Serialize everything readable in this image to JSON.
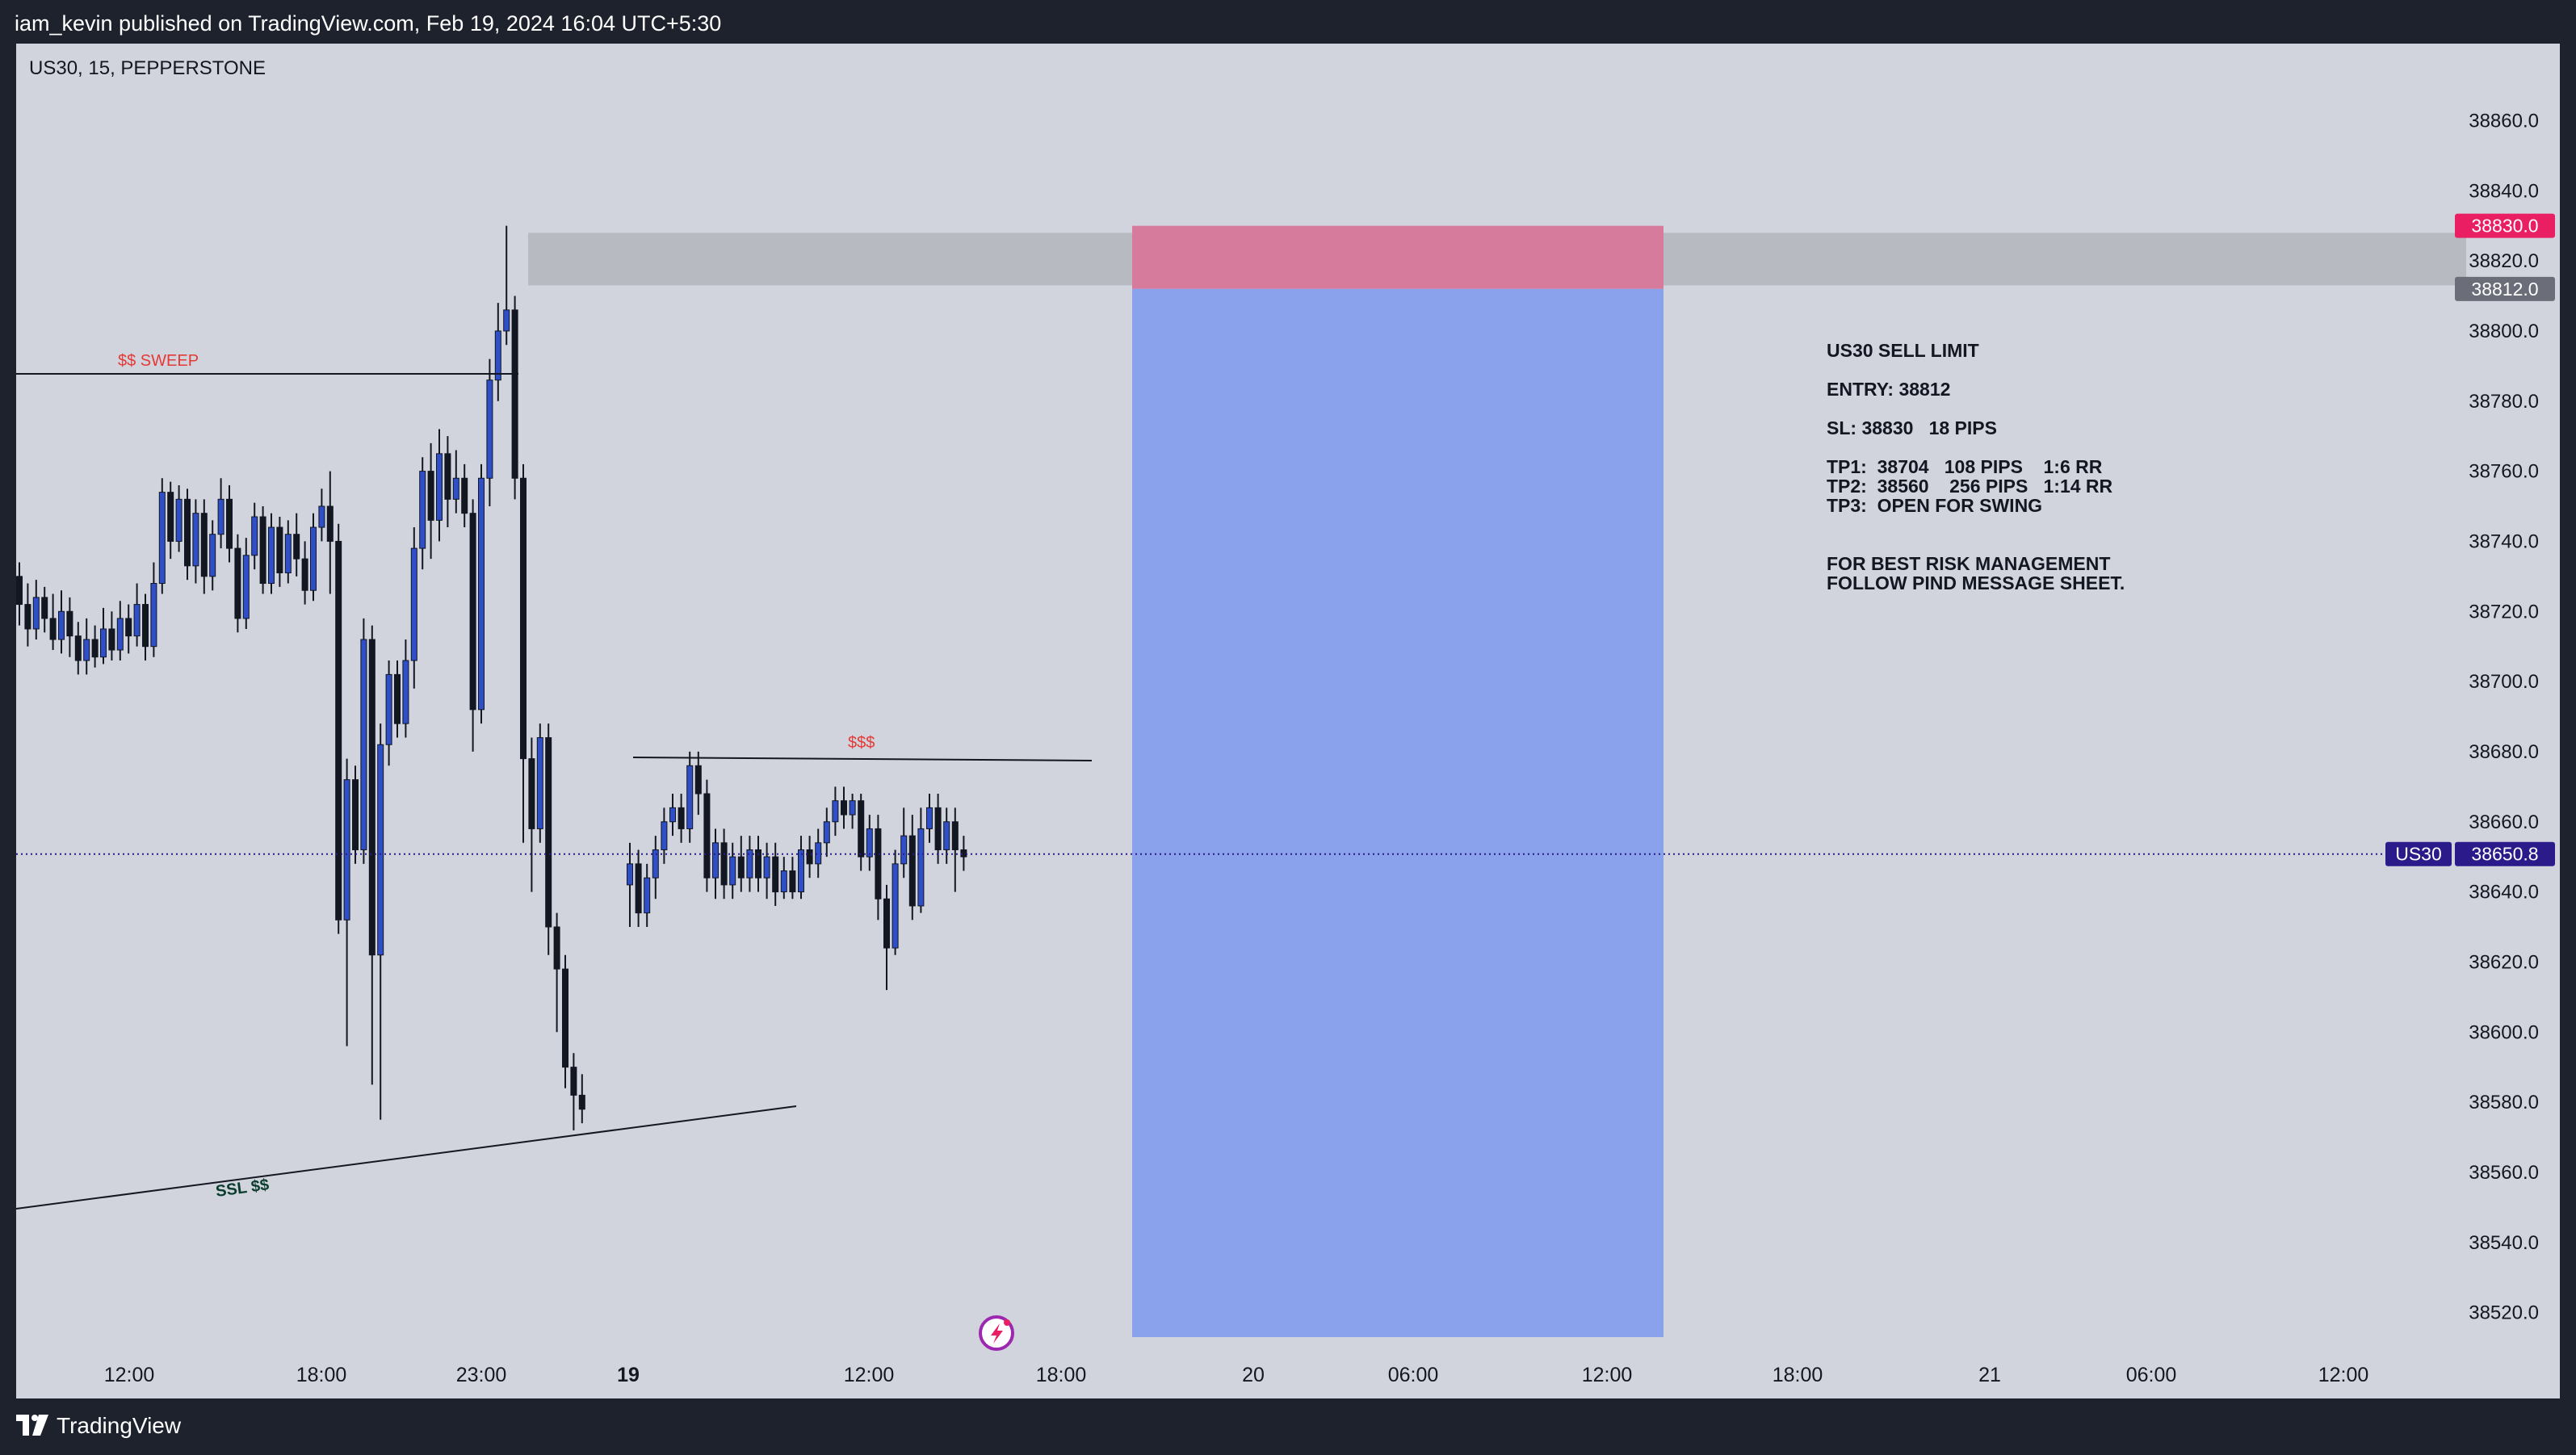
{
  "header": {
    "published_text": "iam_kevin published on TradingView.com, Feb 19, 2024 16:04 UTC+5:30"
  },
  "footer": {
    "brand": "TradingView"
  },
  "symbol_info": "US30, 15, PEPPERSTONE",
  "colors": {
    "background": "#d1d4dc",
    "frame": "#1e222d",
    "candle_up": "#2e4fc7",
    "candle_down": "#131722",
    "stop_zone": "#d67b9c",
    "target_zone": "#8aa2ec",
    "supply_zone": "#b8bac2",
    "sell_marker": "#e91e63",
    "last_price": "#2b1b8a",
    "annotation_red": "#e53935",
    "annotation_green": "#0b3d2e"
  },
  "chart_data": {
    "type": "candlestick",
    "y_range": [
      38510,
      38870
    ],
    "y_ticks": [
      "38520.0",
      "38540.0",
      "38560.0",
      "38580.0",
      "38600.0",
      "38620.0",
      "38640.0",
      "38660.0",
      "38680.0",
      "38700.0",
      "38720.0",
      "38740.0",
      "38760.0",
      "38780.0",
      "38800.0",
      "38820.0",
      "38840.0",
      "38860.0"
    ],
    "x_ticks": [
      "12:00",
      "18:00",
      "23:00",
      "19",
      "12:00",
      "18:00",
      "20",
      "06:00",
      "12:00",
      "18:00",
      "21",
      "06:00",
      "12:00"
    ],
    "candles": [
      [
        38730,
        38722,
        38734,
        38716
      ],
      [
        38722,
        38715,
        38728,
        38710
      ],
      [
        38715,
        38724,
        38729,
        38712
      ],
      [
        38724,
        38718,
        38727,
        38714
      ],
      [
        38718,
        38712,
        38725,
        38709
      ],
      [
        38712,
        38720,
        38726,
        38708
      ],
      [
        38720,
        38713,
        38724,
        38707
      ],
      [
        38713,
        38706,
        38717,
        38702
      ],
      [
        38706,
        38712,
        38718,
        38702
      ],
      [
        38712,
        38707,
        38716,
        38704
      ],
      [
        38707,
        38715,
        38721,
        38705
      ],
      [
        38715,
        38709,
        38720,
        38706
      ],
      [
        38709,
        38718,
        38723,
        38706
      ],
      [
        38718,
        38713,
        38722,
        38708
      ],
      [
        38713,
        38722,
        38728,
        38710
      ],
      [
        38722,
        38710,
        38725,
        38706
      ],
      [
        38710,
        38728,
        38734,
        38707
      ],
      [
        38728,
        38754,
        38758,
        38725
      ],
      [
        38754,
        38740,
        38757,
        38735
      ],
      [
        38740,
        38752,
        38756,
        38737
      ],
      [
        38752,
        38733,
        38755,
        38729
      ],
      [
        38733,
        38748,
        38752,
        38728
      ],
      [
        38748,
        38730,
        38752,
        38725
      ],
      [
        38730,
        38742,
        38746,
        38726
      ],
      [
        38742,
        38752,
        38758,
        38738
      ],
      [
        38752,
        38738,
        38756,
        38734
      ],
      [
        38738,
        38718,
        38742,
        38714
      ],
      [
        38718,
        38736,
        38741,
        38715
      ],
      [
        38736,
        38747,
        38751,
        38732
      ],
      [
        38747,
        38728,
        38750,
        38725
      ],
      [
        38728,
        38744,
        38748,
        38725
      ],
      [
        38744,
        38731,
        38747,
        38727
      ],
      [
        38731,
        38742,
        38746,
        38728
      ],
      [
        38742,
        38735,
        38748,
        38730
      ],
      [
        38735,
        38726,
        38740,
        38722
      ],
      [
        38726,
        38744,
        38748,
        38723
      ],
      [
        38744,
        38750,
        38755,
        38740
      ],
      [
        38750,
        38740,
        38760,
        38725
      ],
      [
        38740,
        38632,
        38745,
        38628
      ],
      [
        38632,
        38672,
        38678,
        38596
      ],
      [
        38672,
        38652,
        38676,
        38648
      ],
      [
        38652,
        38712,
        38718,
        38648
      ],
      [
        38712,
        38622,
        38716,
        38585
      ],
      [
        38622,
        38682,
        38688,
        38575
      ],
      [
        38682,
        38702,
        38706,
        38676
      ],
      [
        38702,
        38688,
        38706,
        38684
      ],
      [
        38688,
        38706,
        38712,
        38684
      ],
      [
        38706,
        38738,
        38744,
        38698
      ],
      [
        38738,
        38760,
        38764,
        38732
      ],
      [
        38760,
        38746,
        38768,
        38735
      ],
      [
        38746,
        38765,
        38772,
        38740
      ],
      [
        38765,
        38752,
        38770,
        38744
      ],
      [
        38752,
        38758,
        38766,
        38748
      ],
      [
        38758,
        38748,
        38762,
        38744
      ],
      [
        38748,
        38692,
        38752,
        38680
      ],
      [
        38692,
        38758,
        38762,
        38688
      ],
      [
        38758,
        38786,
        38792,
        38750
      ],
      [
        38786,
        38800,
        38808,
        38780
      ],
      [
        38800,
        38806,
        38830,
        38796
      ],
      [
        38806,
        38758,
        38810,
        38752
      ],
      [
        38758,
        38678,
        38762,
        38654
      ],
      [
        38678,
        38658,
        38684,
        38640
      ],
      [
        38658,
        38684,
        38688,
        38654
      ],
      [
        38684,
        38630,
        38688,
        38622
      ],
      [
        38630,
        38618,
        38634,
        38600
      ],
      [
        38618,
        38590,
        38622,
        38584
      ],
      [
        38590,
        38582,
        38594,
        38572
      ],
      [
        38582,
        38578,
        38588,
        38574
      ],
      [
        38642,
        38648,
        38654,
        38630
      ],
      [
        38648,
        38634,
        38652,
        38630
      ],
      [
        38634,
        38644,
        38648,
        38630
      ],
      [
        38644,
        38652,
        38656,
        38638
      ],
      [
        38652,
        38660,
        38664,
        38648
      ],
      [
        38660,
        38664,
        38668,
        38656
      ],
      [
        38664,
        38658,
        38668,
        38654
      ],
      [
        38658,
        38676,
        38680,
        38654
      ],
      [
        38676,
        38668,
        38680,
        38662
      ],
      [
        38668,
        38644,
        38672,
        38640
      ],
      [
        38644,
        38654,
        38658,
        38638
      ],
      [
        38654,
        38642,
        38658,
        38638
      ],
      [
        38642,
        38650,
        38654,
        38638
      ],
      [
        38650,
        38644,
        38656,
        38640
      ],
      [
        38644,
        38652,
        38656,
        38640
      ],
      [
        38652,
        38644,
        38656,
        38640
      ],
      [
        38644,
        38650,
        38654,
        38638
      ],
      [
        38650,
        38640,
        38654,
        38636
      ],
      [
        38640,
        38646,
        38650,
        38638
      ],
      [
        38646,
        38640,
        38650,
        38638
      ],
      [
        38640,
        38652,
        38656,
        38638
      ],
      [
        38652,
        38648,
        38656,
        38644
      ],
      [
        38648,
        38654,
        38658,
        38644
      ],
      [
        38654,
        38660,
        38664,
        38650
      ],
      [
        38660,
        38666,
        38670,
        38656
      ],
      [
        38666,
        38662,
        38670,
        38658
      ],
      [
        38662,
        38666,
        38668,
        38658
      ],
      [
        38666,
        38650,
        38668,
        38646
      ],
      [
        38650,
        38658,
        38662,
        38646
      ],
      [
        38658,
        38638,
        38662,
        38632
      ],
      [
        38638,
        38624,
        38642,
        38612
      ],
      [
        38624,
        38648,
        38652,
        38622
      ],
      [
        38648,
        38656,
        38664,
        38644
      ],
      [
        38656,
        38636,
        38662,
        38632
      ],
      [
        38636,
        38658,
        38664,
        38634
      ],
      [
        38658,
        38664,
        38668,
        38654
      ],
      [
        38664,
        38652,
        38668,
        38648
      ],
      [
        38652,
        38660,
        38664,
        38648
      ],
      [
        38660,
        38652,
        38664,
        38640
      ],
      [
        38652,
        38650,
        38656,
        38646
      ]
    ],
    "last_price_label": {
      "symbol": "US30",
      "price": "38650.8",
      "value": 38650.8
    },
    "price_markers": [
      {
        "label": "38830.0",
        "value": 38830
      },
      {
        "label": "38812.0",
        "value": 38812
      }
    ],
    "supply_zone": {
      "top": 38828,
      "bottom": 38813
    },
    "position": {
      "type": "short",
      "entry": 38812,
      "stop": 38830,
      "target": 38513
    },
    "annotations": {
      "sweep": "$$ SWEEP",
      "liquidity_high": "$$$",
      "ssl": "SSL $$"
    },
    "trade_notes": [
      "US30 SELL LIMIT",
      "ENTRY: 38812",
      "SL: 38830   18 PIPS",
      "TP1:  38704   108 PIPS    1:6 RR",
      "TP2:  38560    256 PIPS   1:14 RR",
      "TP3:  OPEN FOR SWING",
      "FOR BEST RISK MANAGEMENT",
      "FOLLOW PIND MESSAGE SHEET."
    ]
  }
}
